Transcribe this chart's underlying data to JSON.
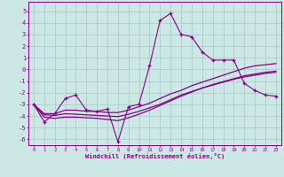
{
  "xlabel": "Windchill (Refroidissement éolien,°C)",
  "background_color": "#cce8e4",
  "grid_color": "#aacccc",
  "line_color": "#880088",
  "spine_color": "#880088",
  "xlim_min": -0.5,
  "xlim_max": 23.5,
  "ylim_min": -6.5,
  "ylim_max": 5.8,
  "yticks": [
    -6,
    -5,
    -4,
    -3,
    -2,
    -1,
    0,
    1,
    2,
    3,
    4,
    5
  ],
  "xticks": [
    0,
    1,
    2,
    3,
    4,
    5,
    6,
    7,
    8,
    9,
    10,
    11,
    12,
    13,
    14,
    15,
    16,
    17,
    18,
    19,
    20,
    21,
    22,
    23
  ],
  "series": [
    {
      "x": [
        0,
        1,
        2,
        3,
        4,
        5,
        6,
        7,
        8,
        9,
        10,
        11,
        12,
        13,
        14,
        15,
        16,
        17,
        18,
        19,
        20,
        21,
        22,
        23
      ],
      "y": [
        -3.0,
        -4.5,
        -3.8,
        -2.5,
        -2.2,
        -3.5,
        -3.6,
        -3.4,
        -6.2,
        -3.2,
        -3.0,
        0.3,
        4.2,
        4.8,
        3.0,
        2.8,
        1.5,
        0.8,
        0.8,
        0.8,
        -1.2,
        -1.8,
        -2.2,
        -2.3
      ],
      "marker": "+"
    },
    {
      "x": [
        0,
        1,
        2,
        3,
        4,
        5,
        6,
        7,
        8,
        9,
        10,
        11,
        12,
        13,
        14,
        15,
        16,
        17,
        18,
        19,
        20,
        21,
        22,
        23
      ],
      "y": [
        -3.0,
        -3.8,
        -3.8,
        -3.5,
        -3.5,
        -3.6,
        -3.6,
        -3.7,
        -3.7,
        -3.5,
        -3.2,
        -2.9,
        -2.5,
        -2.1,
        -1.8,
        -1.4,
        -1.1,
        -0.8,
        -0.5,
        -0.2,
        0.1,
        0.3,
        0.4,
        0.5
      ],
      "marker": null
    },
    {
      "x": [
        0,
        1,
        2,
        3,
        4,
        5,
        6,
        7,
        8,
        9,
        10,
        11,
        12,
        13,
        14,
        15,
        16,
        17,
        18,
        19,
        20,
        21,
        22,
        23
      ],
      "y": [
        -3.0,
        -3.9,
        -3.95,
        -3.8,
        -3.85,
        -3.9,
        -3.95,
        -4.0,
        -4.05,
        -3.85,
        -3.6,
        -3.3,
        -3.0,
        -2.6,
        -2.2,
        -1.9,
        -1.6,
        -1.35,
        -1.1,
        -0.85,
        -0.65,
        -0.5,
        -0.35,
        -0.25
      ],
      "marker": null
    },
    {
      "x": [
        0,
        1,
        2,
        3,
        4,
        5,
        6,
        7,
        8,
        9,
        10,
        11,
        12,
        13,
        14,
        15,
        16,
        17,
        18,
        19,
        20,
        21,
        22,
        23
      ],
      "y": [
        -3.0,
        -4.1,
        -4.2,
        -4.1,
        -4.1,
        -4.15,
        -4.2,
        -4.3,
        -4.4,
        -4.15,
        -3.85,
        -3.5,
        -3.1,
        -2.7,
        -2.3,
        -1.95,
        -1.6,
        -1.3,
        -1.05,
        -0.8,
        -0.55,
        -0.4,
        -0.25,
        -0.15
      ],
      "marker": null
    }
  ]
}
